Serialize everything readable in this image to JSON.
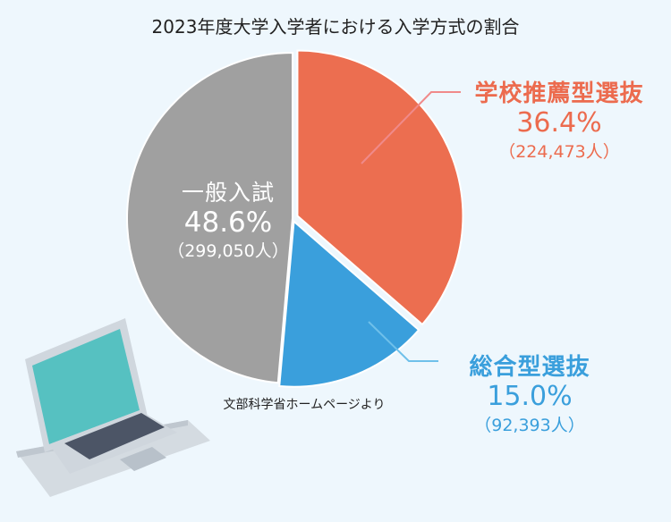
{
  "title": "2023年度大学入学者における入学方式の割合",
  "source": "文部科学省ホームページより",
  "chart_data": {
    "type": "pie",
    "title": "2023年度大学入学者における入学方式の割合",
    "slices": [
      {
        "name": "学校推薦型選抜",
        "percent": 36.4,
        "percent_label": "36.4%",
        "count_label": "（224,473人）",
        "color": "#ec6e50"
      },
      {
        "name": "総合型選抜",
        "percent": 15.0,
        "percent_label": "15.0%",
        "count_label": "（92,393人）",
        "color": "#3a9fdc"
      },
      {
        "name": "一般入試",
        "percent": 48.6,
        "percent_label": "48.6%",
        "count_label": "（299,050人）",
        "color": "#a0a0a0"
      }
    ]
  }
}
